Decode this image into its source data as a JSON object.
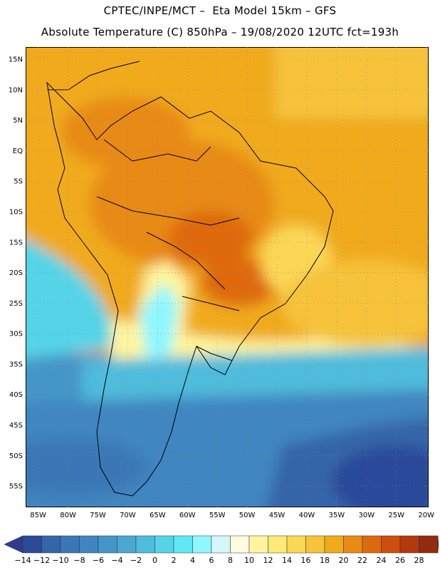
{
  "header": {
    "line1": "CPTEC/INPE/MCT –  Eta Model 15km – GFS",
    "line2": "Absolute Temperature (C) 850hPa – 19/08/2020 12UTC fct=193h"
  },
  "map": {
    "lat_labels": [
      "15N",
      "10N",
      "5N",
      "EQ",
      "5S",
      "10S",
      "15S",
      "20S",
      "25S",
      "30S",
      "35S",
      "40S",
      "45S",
      "50S",
      "55S"
    ],
    "lon_labels": [
      "85W",
      "80W",
      "75W",
      "70W",
      "65W",
      "60W",
      "55W",
      "50W",
      "45W",
      "40W",
      "35W",
      "30W",
      "25W",
      "20W"
    ],
    "lat_values": [
      15,
      10,
      5,
      0,
      -5,
      -10,
      -15,
      -20,
      -25,
      -30,
      -35,
      -40,
      -45,
      -50,
      -55
    ],
    "lon_values": [
      -85,
      -80,
      -75,
      -70,
      -65,
      -60,
      -55,
      -50,
      -45,
      -40,
      -35,
      -30,
      -25,
      -20
    ]
  },
  "colorbar": {
    "labels": [
      "-14",
      "-12",
      "-10",
      "-8",
      "-6",
      "-4",
      "-2",
      "0",
      "2",
      "4",
      "6",
      "8",
      "10",
      "12",
      "14",
      "16",
      "18",
      "20",
      "22",
      "24",
      "26",
      "28"
    ],
    "colors": {
      "under": "#2e3c8e",
      "bins": [
        "#2c4a9a",
        "#3565a9",
        "#3b77b6",
        "#3f86c0",
        "#4596c8",
        "#49a8d2",
        "#4fbcdc",
        "#55d4e8",
        "#5ee8f4",
        "#8ef7ff",
        "#d5f7fb",
        "#fffbe0",
        "#fff59e",
        "#ffe978",
        "#fbd756",
        "#f6c33a",
        "#f0aa1c",
        "#e88a16",
        "#de6a10",
        "#cf4e0c",
        "#b23a0c",
        "#922c10"
      ],
      "over": "#7a1a1a"
    }
  }
}
